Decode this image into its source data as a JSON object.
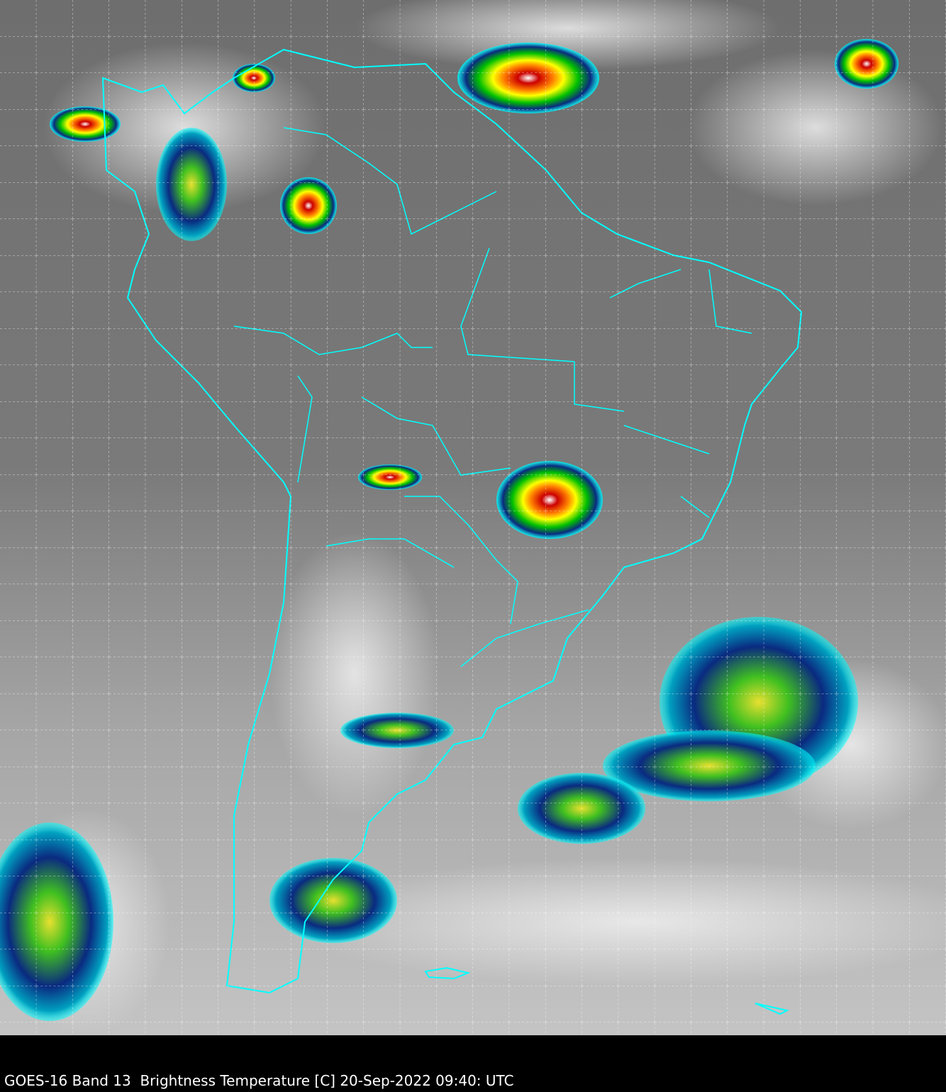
{
  "caption": "GOES-16 Band 13  Brightness Temperature [C] 20-Sep-2022 09:40: UTC",
  "colors": {
    "coastline": "#00ffff",
    "grid": "#ffffff",
    "background": "#000000",
    "cold_cloud_scale": [
      "#00ffff",
      "#0a2a80",
      "#00c000",
      "#ffff00",
      "#ff8000",
      "#cc0000",
      "#ffffff"
    ]
  }
}
